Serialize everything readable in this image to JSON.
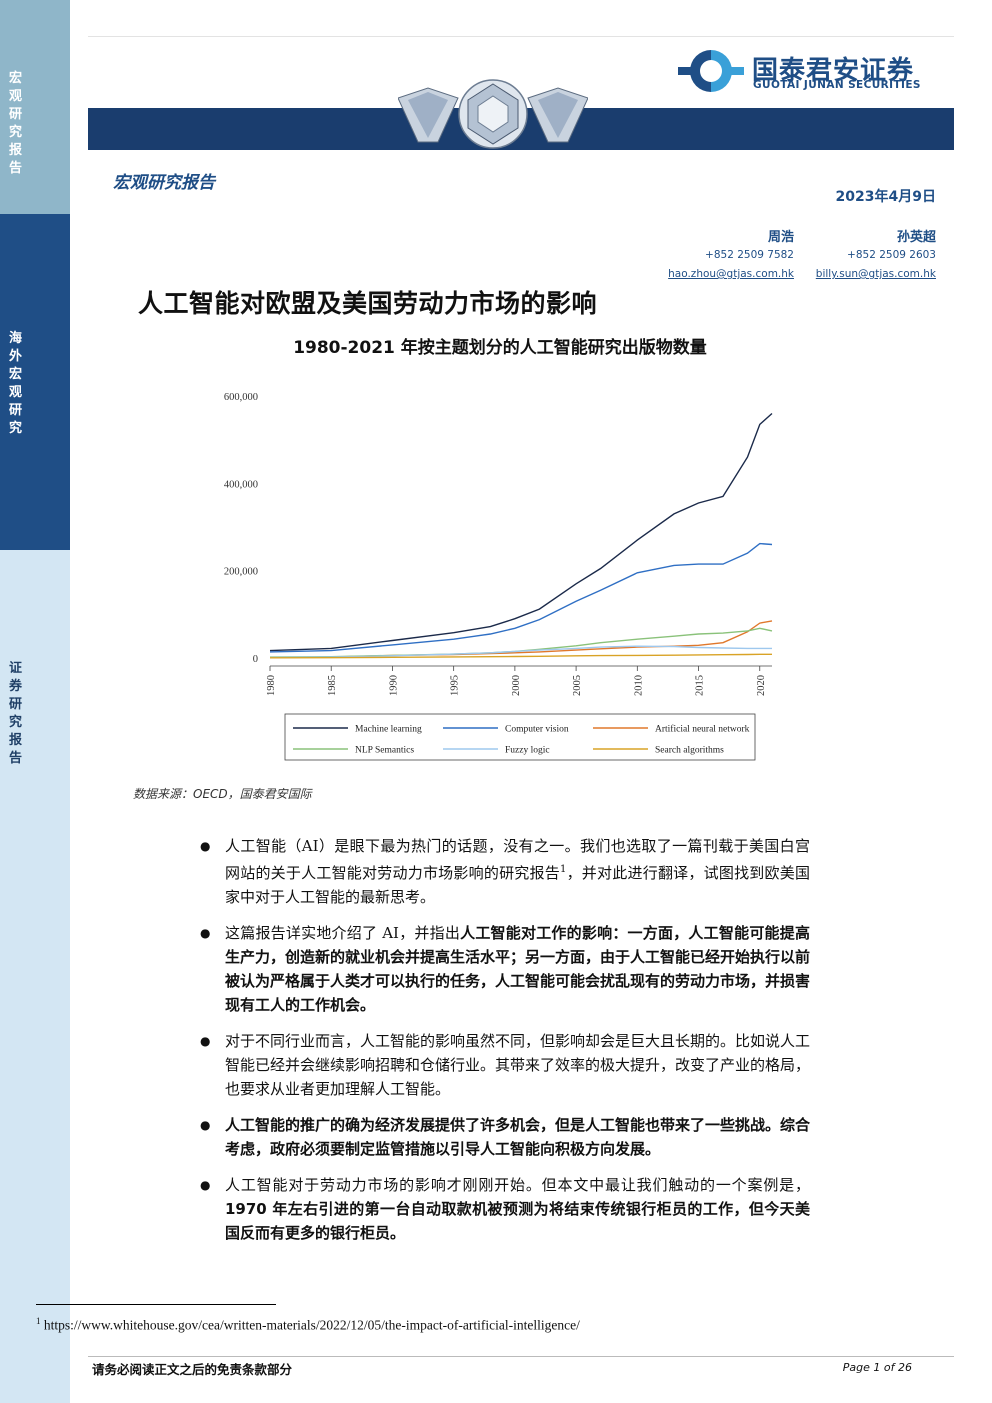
{
  "sidebar": {
    "sections": [
      "宏观研究报告",
      "海外宏观研究",
      "证券研究报告"
    ],
    "colors": [
      "#8fb6c9",
      "#1f4e86",
      "#d3e6f3"
    ]
  },
  "header": {
    "logo_cn": "国泰君安证券",
    "logo_en": "GUOTAI JUNAN SECURITIES",
    "report_type": "宏观研究报告",
    "date": "2023年4月9日",
    "brand_color": "#1f4e86"
  },
  "authors": [
    {
      "name": "周浩",
      "phone": "+852 2509 7582",
      "email": "hao.zhou@gtjas.com.hk"
    },
    {
      "name": "孙英超",
      "phone": "+852 2509 2603",
      "email": "billy.sun@gtjas.com.hk"
    }
  ],
  "title": "人工智能对欧盟及美国劳动力市场的影响",
  "chart_title": "1980-2021 年按主题划分的人工智能研究出版物数量",
  "chart_data": {
    "type": "line",
    "title": "1980-2021 年按主题划分的人工智能研究出版物数量",
    "x": [
      1980,
      1985,
      1990,
      1995,
      1998,
      2000,
      2002,
      2005,
      2007,
      2010,
      2013,
      2015,
      2017,
      2019,
      2020,
      2021
    ],
    "xticks": [
      "1980",
      "1985",
      "1990",
      "1995",
      "2000",
      "2005",
      "2010",
      "2015",
      "2020"
    ],
    "yticks": [
      "0",
      "200,000",
      "400,000",
      "600,000"
    ],
    "ylim": [
      0,
      600000
    ],
    "xlim": [
      1980,
      2021
    ],
    "grid": false,
    "legend_position": "bottom",
    "series": [
      {
        "name": "Machine learning",
        "color": "#1b2a4a",
        "values": [
          17000,
          22000,
          40000,
          58000,
          72000,
          90000,
          112000,
          170000,
          205000,
          270000,
          330000,
          355000,
          370000,
          460000,
          535000,
          560000
        ]
      },
      {
        "name": "Computer vision",
        "color": "#2f6fc4",
        "values": [
          14000,
          17000,
          30000,
          43000,
          55000,
          68000,
          88000,
          130000,
          155000,
          195000,
          212000,
          215000,
          215000,
          240000,
          262000,
          260000
        ]
      },
      {
        "name": "Artificial neural network",
        "color": "#e0782c",
        "values": [
          1000,
          2000,
          6000,
          8000,
          10000,
          12000,
          14000,
          18000,
          21000,
          25000,
          27000,
          29000,
          35000,
          60000,
          80000,
          85000
        ]
      },
      {
        "name": "NLP Semantics",
        "color": "#8ac27a",
        "values": [
          2000,
          3000,
          6000,
          9000,
          12000,
          15000,
          20000,
          28000,
          35000,
          43000,
          50000,
          55000,
          57000,
          62000,
          68000,
          62000
        ]
      },
      {
        "name": "Fuzzy logic",
        "color": "#9ec8ee",
        "values": [
          1000,
          2000,
          5000,
          9000,
          12000,
          15000,
          18000,
          22000,
          25000,
          27000,
          26000,
          24000,
          23000,
          22000,
          22000,
          22000
        ]
      },
      {
        "name": "Search algorithms",
        "color": "#d9a326",
        "values": [
          500,
          800,
          1500,
          2500,
          3000,
          3500,
          4000,
          5000,
          5500,
          6000,
          6500,
          7000,
          7500,
          8000,
          8500,
          8500
        ]
      }
    ]
  },
  "source": "数据来源：OECD，国泰君安国际",
  "bullets": [
    {
      "parts": [
        {
          "t": "人工智能（AI）是眼下最为热门的话题，没有之一。我们也选取了一篇刊载于美国白宫网站的关于人工智能对劳动力市场影响的研究报告"
        },
        {
          "t": "1",
          "sup": true
        },
        {
          "t": "，并对此进行翻译，试图找到欧美国家中对于人工智能的最新思考。"
        }
      ]
    },
    {
      "parts": [
        {
          "t": "这篇报告详实地介绍了 AI，并指出"
        },
        {
          "t": "人工智能对工作的影响：一方面，人工智能可能提高生产力，创造新的就业机会并提高生活水平；另一方面，由于人工智能已经开始执行以前被认为严格属于人类才可以执行的任务，人工智能可能会扰乱现有的劳动力市场，并损害现有工人的工作机会。",
          "b": true
        }
      ]
    },
    {
      "parts": [
        {
          "t": "对于不同行业而言，人工智能的影响虽然不同，但影响却会是巨大且长期的。比如说人工智能已经并会继续影响招聘和仓储行业。其带来了效率的极大提升，改变了产业的格局，也要求从业者更加理解人工智能。"
        }
      ]
    },
    {
      "parts": [
        {
          "t": "人工智能的推广的确为经济发展提供了许多机会，但是人工智能也带来了一些挑战。综合考虑，政府必须要制定监管措施以引导人工智能向积极方向发展。",
          "b": true
        }
      ]
    },
    {
      "parts": [
        {
          "t": "人工智能对于劳动力市场的影响才刚刚开始。但本文中最让我们触动的一个案例是，"
        },
        {
          "t": "1970 年左右引进的第一台自动取款机被预测为将结束传统银行柜员的工作，但今天美国反而有更多的银行柜员。",
          "b": true
        }
      ]
    }
  ],
  "footnote": {
    "num": "1",
    "text": "https://www.whitehouse.gov/cea/written-materials/2022/12/05/the-impact-of-artificial-intelligence/"
  },
  "footer": {
    "disclaimer": "请务必阅读正文之后的免责条款部分",
    "page": "Page 1 of 26"
  }
}
